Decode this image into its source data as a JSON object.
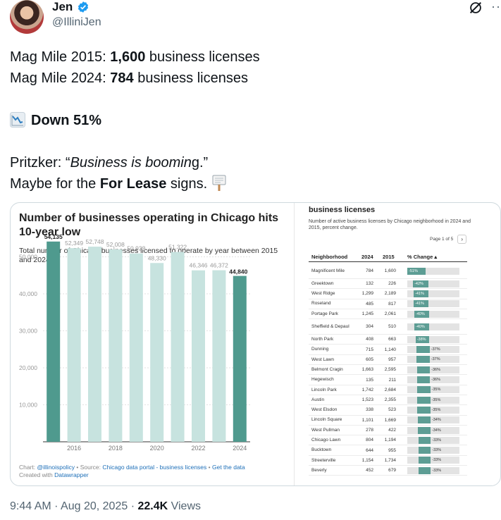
{
  "tweet": {
    "display_name": "Jen",
    "handle": "@IlliniJen",
    "line1_prefix": "Mag Mile 2015: ",
    "line1_bold": "1,600",
    "line1_suffix": " business licenses",
    "line2_prefix": "Mag Mile 2024: ",
    "line2_bold": "784",
    "line2_suffix": " business licenses",
    "line3_bold": "Down 51%",
    "line4_prefix": "Pritzker: “",
    "line4_italic": "Business is boomin",
    "line4_suffix": "g.”",
    "line5_prefix": "Maybe for the ",
    "line5_bold": "For Lease",
    "line5_suffix": " signs.",
    "time": "9:44 AM",
    "sep": " · ",
    "date": "Aug 20, 2025",
    "views_count": "22.4K",
    "views_label": " Views",
    "accent_color": "#1d9bf0"
  },
  "chart_data": [
    {
      "type": "bar",
      "title": "Number of businesses operating in Chicago hits 10-year low",
      "subtitle": "Total number of Chicago businesses licensed to operate by year between 2015 and 2024.",
      "categories": [
        "2015",
        "2016",
        "2017",
        "2018",
        "2019",
        "2020",
        "2021",
        "2022",
        "2023",
        "2024"
      ],
      "values": [
        54135,
        52349,
        52748,
        52008,
        50923,
        48330,
        51322,
        46346,
        46372,
        44840
      ],
      "value_labels": [
        "54,135",
        "52,349",
        "52,748",
        "52,008",
        "50,923",
        "48,330",
        "51,322",
        "46,346",
        "46,372",
        "44,840"
      ],
      "x_tick_labels": [
        "2016",
        "2018",
        "2020",
        "2022",
        "2024"
      ],
      "y_ticks": [
        10000,
        20000,
        30000,
        40000,
        50000
      ],
      "y_tick_labels": [
        "10,000",
        "20,000",
        "30,000",
        "40,000",
        "50,000"
      ],
      "ylim": [
        0,
        60000
      ],
      "grid": true,
      "highlight_color": "#4f9a8e",
      "bar_color": "#c7e3df",
      "footer_prefix": "Chart: ",
      "footer_chart_link": "@illinoispolicy",
      "footer_source_prefix": " • Source: ",
      "footer_source_link": "Chicago data portal - business licenses",
      "footer_sep": " • ",
      "footer_get_data": "Get the data",
      "footer_created_prefix": "Created with ",
      "footer_created_link": "Datawrapper"
    },
    {
      "type": "table",
      "title": "business licenses",
      "subtitle": "Number of active business licenses by Chicago neighborhood in 2024 and 2015, percent change.",
      "page_label": "Page 1 of 5",
      "next_glyph": "›",
      "columns": [
        "Neighborhood",
        "2024",
        "2015",
        "% Change ▴"
      ],
      "rows": [
        {
          "name": "Magnificent Mile",
          "v2024": "784",
          "v2015": "1,600",
          "change": "-51%",
          "pct": 51
        },
        {
          "name": "Greektown",
          "v2024": "132",
          "v2015": "226",
          "change": "-42%",
          "pct": 42
        },
        {
          "name": "West Ridge",
          "v2024": "1,299",
          "v2015": "2,189",
          "change": "-41%",
          "pct": 41
        },
        {
          "name": "Roseland",
          "v2024": "485",
          "v2015": "817",
          "change": "-41%",
          "pct": 41
        },
        {
          "name": "Portage Park",
          "v2024": "1,245",
          "v2015": "2,061",
          "change": "-40%",
          "pct": 40
        },
        {
          "name": "Sheffield & Depaul",
          "v2024": "304",
          "v2015": "510",
          "change": "-40%",
          "pct": 40
        },
        {
          "name": "North Park",
          "v2024": "408",
          "v2015": "663",
          "change": "-38%",
          "pct": 38
        },
        {
          "name": "Dunning",
          "v2024": "715",
          "v2015": "1,140",
          "change": "-37%",
          "pct": 37
        },
        {
          "name": "West Lawn",
          "v2024": "605",
          "v2015": "957",
          "change": "-37%",
          "pct": 37
        },
        {
          "name": "Belmont Cragin",
          "v2024": "1,663",
          "v2015": "2,595",
          "change": "-36%",
          "pct": 36
        },
        {
          "name": "Hegewisch",
          "v2024": "135",
          "v2015": "211",
          "change": "-36%",
          "pct": 36
        },
        {
          "name": "Lincoln Park",
          "v2024": "1,742",
          "v2015": "2,684",
          "change": "-35%",
          "pct": 35
        },
        {
          "name": "Austin",
          "v2024": "1,523",
          "v2015": "2,355",
          "change": "-35%",
          "pct": 35
        },
        {
          "name": "West Elsdon",
          "v2024": "338",
          "v2015": "523",
          "change": "-35%",
          "pct": 35
        },
        {
          "name": "Lincoln Square",
          "v2024": "1,101",
          "v2015": "1,669",
          "change": "-34%",
          "pct": 34
        },
        {
          "name": "West Pullman",
          "v2024": "278",
          "v2015": "422",
          "change": "-34%",
          "pct": 34
        },
        {
          "name": "Chicago Lawn",
          "v2024": "804",
          "v2015": "1,194",
          "change": "-33%",
          "pct": 33
        },
        {
          "name": "Bucktown",
          "v2024": "644",
          "v2015": "955",
          "change": "-33%",
          "pct": 33
        },
        {
          "name": "Streeterville",
          "v2024": "1,154",
          "v2015": "1,734",
          "change": "-33%",
          "pct": 33
        },
        {
          "name": "Beverly",
          "v2024": "452",
          "v2015": "679",
          "change": "-33%",
          "pct": 33
        }
      ]
    }
  ]
}
